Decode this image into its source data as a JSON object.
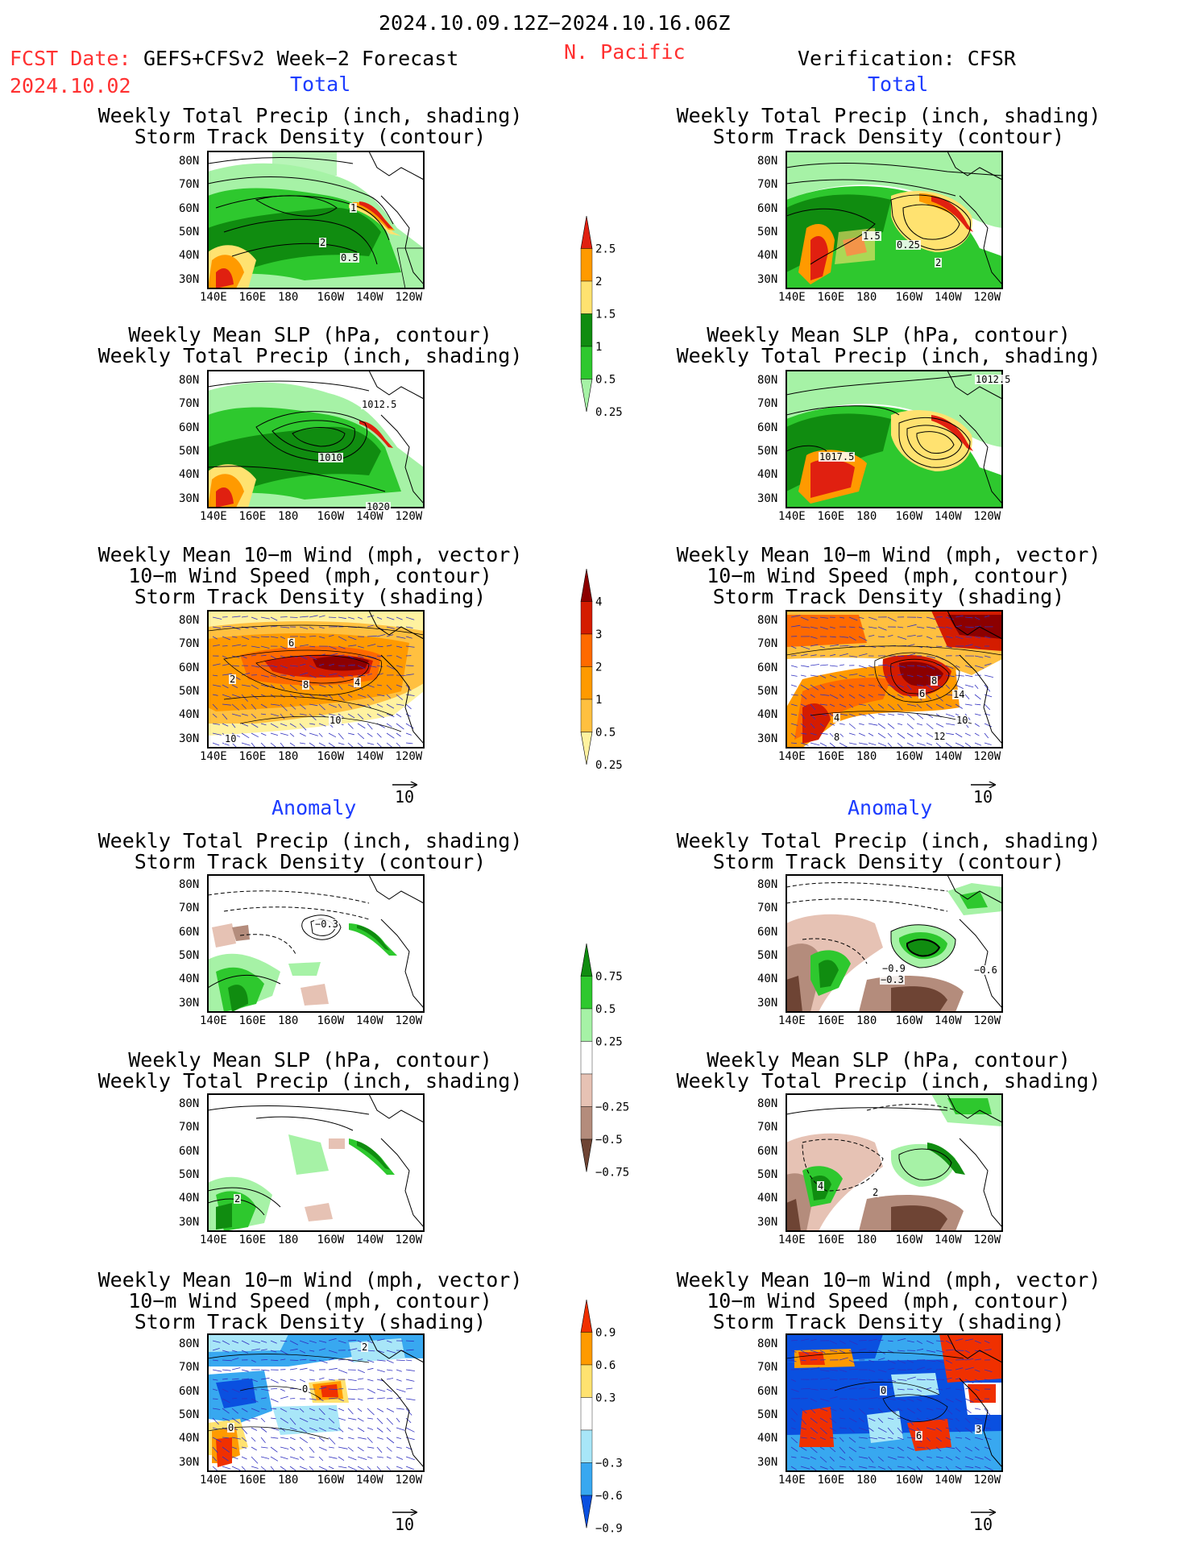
{
  "header": {
    "date_range": "2024.10.09.12Z−2024.10.16.06Z",
    "fcst_label": "FCST Date:",
    "fcst_model": "GEFS+CFSv2 Week−2 Forecast",
    "fcst_date": "2024.10.02",
    "region": "N. Pacific",
    "verification": "Verification: CFSR"
  },
  "section_labels": {
    "total": "Total",
    "anomaly": "Anomaly"
  },
  "panel_titles": {
    "precip_std": [
      "Weekly Total Precip (inch, shading)",
      "Storm Track Density (contour)"
    ],
    "slp_precip": [
      "Weekly Mean SLP (hPa, contour)",
      "Weekly Total Precip (inch, shading)"
    ],
    "wind": [
      "Weekly Mean 10−m Wind (mph, vector)",
      "10−m Wind Speed (mph, contour)",
      "Storm Track Density (shading)"
    ]
  },
  "axes": {
    "lat_ticks": [
      "80N",
      "70N",
      "60N",
      "50N",
      "40N",
      "30N"
    ],
    "lon_ticks": [
      "140E",
      "160E",
      "180",
      "160W",
      "140W",
      "120W"
    ]
  },
  "vector_ref": "10",
  "colorbars": {
    "precip_total": {
      "labels": [
        "2.5",
        "2",
        "1.5",
        "1",
        "0.5",
        "0.25"
      ],
      "colors": [
        "#e02010",
        "#ff9a00",
        "#ffe270",
        "#108c10",
        "#2ec82e",
        "#a6f2a6"
      ]
    },
    "std_total": {
      "labels": [
        "4",
        "3",
        "2",
        "1",
        "0.5",
        "0.25"
      ],
      "colors": [
        "#8c0000",
        "#d41c00",
        "#ff6a00",
        "#ff9a00",
        "#ffc040",
        "#fff2a0"
      ]
    },
    "precip_anom": {
      "labels": [
        "0.75",
        "0.5",
        "0.25",
        "−0.25",
        "−0.5",
        "−0.75"
      ],
      "colors": [
        "#108c10",
        "#2ec82e",
        "#a6f2a6",
        "#ffffff",
        "#e6c2b4",
        "#b48c7c",
        "#6e4434"
      ]
    },
    "std_anom": {
      "labels": [
        "0.9",
        "0.6",
        "0.3",
        "−0.3",
        "−0.6",
        "−0.9"
      ],
      "colors": [
        "#f03000",
        "#ff9a00",
        "#ffe270",
        "#ffffff",
        "#a8e6f8",
        "#38a8f0",
        "#0a50e0"
      ]
    }
  },
  "panel_labels": {
    "L1": [
      "1",
      "2",
      "0.5"
    ],
    "R1": [
      "1.5",
      "0.25",
      "2"
    ],
    "L2": [
      "1012.5",
      "1010",
      "1020"
    ],
    "R2": [
      "1017.5",
      "1012.5"
    ],
    "L3": [
      "6",
      "8",
      "2",
      "4",
      "10",
      "10"
    ],
    "R3": [
      "8",
      "6",
      "4",
      "8",
      "14",
      "10",
      "12"
    ],
    "L4": [
      "−0.3"
    ],
    "R4": [
      "−0.9",
      "−0.3",
      "−0.6"
    ],
    "L5": [
      "2"
    ],
    "R5": [
      "4",
      "2"
    ],
    "L6": [
      "2",
      "0",
      "0"
    ],
    "R6": [
      "0",
      "6",
      "3"
    ]
  }
}
